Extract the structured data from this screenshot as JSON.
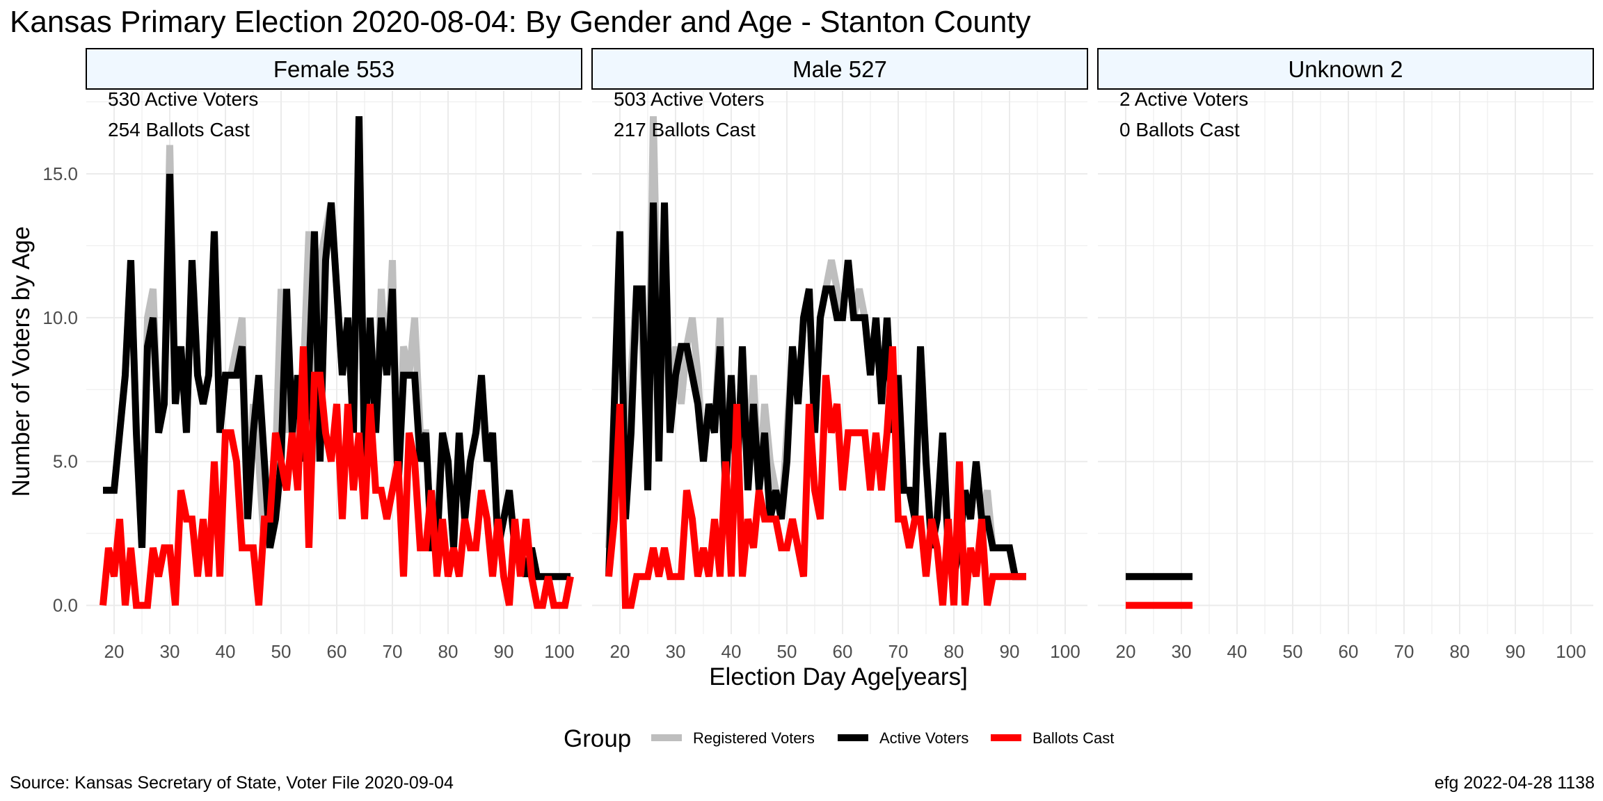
{
  "title": "Kansas Primary Election 2020-08-04:  By Gender and Age - Stanton County",
  "caption_left": "Source:  Kansas Secretary of State, Voter File  2020-09-04",
  "caption_right": "efg 2022-04-28 1138",
  "colors": {
    "registered": "#bebebe",
    "active": "#000000",
    "ballots": "#ff0000",
    "strip_fill": "#f0f8ff",
    "grid": "#ebebeb"
  },
  "chart_data": {
    "type": "line",
    "xlabel": "Election Day Age[years]",
    "ylabel": "Number of Voters by Age",
    "xlim": [
      15,
      104
    ],
    "ylim": [
      -1,
      17.9
    ],
    "x_ticks": [
      20,
      30,
      40,
      50,
      60,
      70,
      80,
      90,
      100
    ],
    "y_ticks": [
      0,
      5,
      10,
      15
    ],
    "y_tick_labels": [
      "0.0",
      "5.0",
      "10.0",
      "15.0"
    ],
    "legend": {
      "title": "Group",
      "position": "bottom",
      "items": [
        "Registered Voters",
        "Active Voters",
        "Ballots Cast"
      ]
    },
    "panels": [
      {
        "label": "Female 553",
        "annotations": [
          "530 Active Voters",
          "254 Ballots Cast"
        ],
        "series": [
          {
            "name": "Registered Voters",
            "x": [
              18,
              19,
              20,
              21,
              22,
              23,
              24,
              25,
              26,
              27,
              28,
              29,
              30,
              31,
              32,
              33,
              34,
              35,
              36,
              37,
              38,
              39,
              40,
              41,
              42,
              43,
              44,
              45,
              46,
              47,
              48,
              49,
              50,
              51,
              52,
              53,
              54,
              55,
              56,
              57,
              58,
              59,
              60,
              61,
              62,
              63,
              64,
              65,
              66,
              67,
              68,
              69,
              70,
              71,
              72,
              73,
              74,
              75,
              76,
              77,
              78,
              79,
              80,
              81,
              82,
              83,
              84,
              85,
              86,
              87,
              88,
              89,
              90,
              91,
              92,
              93,
              94,
              95,
              96,
              97,
              98,
              99,
              100,
              101,
              102
            ],
            "y": [
              4,
              4,
              4,
              6,
              8,
              12,
              6,
              2,
              10,
              11,
              6,
              7,
              16,
              7,
              9,
              6,
              12,
              8,
              7,
              8,
              13,
              6,
              8,
              8,
              9,
              10,
              3,
              7,
              5,
              2,
              3,
              5,
              11,
              6,
              8,
              5,
              8,
              13,
              5,
              12,
              13,
              14,
              11,
              8,
              10,
              6,
              17,
              5,
              10,
              6,
              11,
              8,
              12,
              4,
              9,
              8,
              10,
              6,
              6,
              2,
              3,
              6,
              5,
              2,
              6,
              3,
              5,
              6,
              7,
              5,
              6,
              2,
              3,
              4,
              2,
              2,
              1,
              2,
              1,
              1,
              1,
              1,
              1,
              1,
              1
            ]
          },
          {
            "name": "Active Voters",
            "x": [
              18,
              19,
              20,
              21,
              22,
              23,
              24,
              25,
              26,
              27,
              28,
              29,
              30,
              31,
              32,
              33,
              34,
              35,
              36,
              37,
              38,
              39,
              40,
              41,
              42,
              43,
              44,
              45,
              46,
              47,
              48,
              49,
              50,
              51,
              52,
              53,
              54,
              55,
              56,
              57,
              58,
              59,
              60,
              61,
              62,
              63,
              64,
              65,
              66,
              67,
              68,
              69,
              70,
              71,
              72,
              73,
              74,
              75,
              76,
              77,
              78,
              79,
              80,
              81,
              82,
              83,
              84,
              85,
              86,
              87,
              88,
              89,
              90,
              91,
              92,
              93,
              94,
              95,
              96,
              97,
              98,
              99,
              100,
              101,
              102
            ],
            "y": [
              4,
              4,
              4,
              6,
              8,
              12,
              6,
              2,
              9,
              10,
              6,
              7,
              15,
              7,
              9,
              6,
              12,
              8,
              7,
              8,
              13,
              6,
              8,
              8,
              8,
              9,
              3,
              6,
              8,
              5,
              2,
              3,
              5,
              11,
              6,
              8,
              5,
              8,
              13,
              5,
              12,
              14,
              11,
              8,
              10,
              6,
              17,
              5,
              10,
              6,
              10,
              8,
              11,
              4,
              8,
              8,
              8,
              5,
              6,
              2,
              2,
              6,
              5,
              2,
              6,
              3,
              5,
              6,
              8,
              5,
              6,
              2,
              3,
              4,
              2,
              2,
              1,
              2,
              1,
              1,
              1,
              1,
              1,
              1,
              1
            ]
          },
          {
            "name": "Ballots Cast",
            "x": [
              18,
              19,
              20,
              21,
              22,
              23,
              24,
              25,
              26,
              27,
              28,
              29,
              30,
              31,
              32,
              33,
              34,
              35,
              36,
              37,
              38,
              39,
              40,
              41,
              42,
              43,
              44,
              45,
              46,
              47,
              48,
              49,
              50,
              51,
              52,
              53,
              54,
              55,
              56,
              57,
              58,
              59,
              60,
              61,
              62,
              63,
              64,
              65,
              66,
              67,
              68,
              69,
              70,
              71,
              72,
              73,
              74,
              75,
              76,
              77,
              78,
              79,
              80,
              81,
              82,
              83,
              84,
              85,
              86,
              87,
              88,
              89,
              90,
              91,
              92,
              93,
              94,
              95,
              96,
              97,
              98,
              99,
              100,
              101,
              102
            ],
            "y": [
              0,
              2,
              1,
              3,
              0,
              2,
              0,
              0,
              0,
              2,
              1,
              2,
              2,
              0,
              4,
              3,
              3,
              1,
              3,
              1,
              5,
              1,
              6,
              6,
              5,
              2,
              2,
              2,
              0,
              3,
              3,
              6,
              5,
              4,
              6,
              4,
              9,
              2,
              8,
              8,
              6,
              5,
              7,
              3,
              7,
              4,
              6,
              3,
              7,
              4,
              4,
              3,
              4,
              5,
              1,
              6,
              5,
              2,
              2,
              4,
              1,
              3,
              1,
              2,
              1,
              3,
              2,
              2,
              4,
              3,
              1,
              3,
              1,
              0,
              3,
              1,
              3,
              1,
              0,
              0,
              1,
              0,
              0,
              0,
              1
            ]
          }
        ]
      },
      {
        "label": "Male 527",
        "annotations": [
          "503 Active Voters",
          "217 Ballots Cast"
        ],
        "series": [
          {
            "name": "Registered Voters",
            "x": [
              18,
              19,
              20,
              21,
              22,
              23,
              24,
              25,
              26,
              27,
              28,
              29,
              30,
              31,
              32,
              33,
              34,
              35,
              36,
              37,
              38,
              39,
              40,
              41,
              42,
              43,
              44,
              45,
              46,
              47,
              48,
              49,
              50,
              51,
              52,
              53,
              54,
              55,
              56,
              57,
              58,
              59,
              60,
              61,
              62,
              63,
              64,
              65,
              66,
              67,
              68,
              69,
              70,
              71,
              72,
              73,
              74,
              75,
              76,
              77,
              78,
              79,
              80,
              81,
              82,
              83,
              84,
              85,
              86,
              87,
              88,
              89,
              90,
              91,
              92,
              93
            ],
            "y": [
              2,
              7,
              12,
              4,
              8,
              11,
              9,
              5,
              17,
              8,
              12,
              6,
              9,
              7,
              9,
              10,
              8,
              5,
              7,
              6,
              10,
              4,
              8,
              4,
              9,
              5,
              8,
              4,
              7,
              5,
              4,
              3,
              6,
              9,
              7,
              10,
              11,
              6,
              10,
              11,
              12,
              11,
              10,
              12,
              10,
              11,
              10,
              8,
              10,
              7,
              10,
              6,
              8,
              4,
              4,
              3,
              9,
              5,
              2,
              3,
              5,
              2,
              1,
              2,
              4,
              3,
              5,
              3,
              4,
              2,
              2,
              2,
              2,
              1,
              1,
              1
            ]
          },
          {
            "name": "Active Voters",
            "x": [
              18,
              19,
              20,
              21,
              22,
              23,
              24,
              25,
              26,
              27,
              28,
              29,
              30,
              31,
              32,
              33,
              34,
              35,
              36,
              37,
              38,
              39,
              40,
              41,
              42,
              43,
              44,
              45,
              46,
              47,
              48,
              49,
              50,
              51,
              52,
              53,
              54,
              55,
              56,
              57,
              58,
              59,
              60,
              61,
              62,
              63,
              64,
              65,
              66,
              67,
              68,
              69,
              70,
              71,
              72,
              73,
              74,
              75,
              76,
              77,
              78,
              79,
              80,
              81,
              82,
              83,
              84,
              85,
              86,
              87,
              88,
              89,
              90,
              91,
              92,
              93
            ],
            "y": [
              1,
              7,
              13,
              3,
              6,
              11,
              11,
              4,
              14,
              5,
              14,
              6,
              8,
              9,
              9,
              8,
              7,
              5,
              7,
              6,
              9,
              4,
              8,
              4,
              9,
              4,
              7,
              4,
              6,
              3,
              4,
              3,
              5,
              9,
              7,
              10,
              11,
              6,
              10,
              11,
              11,
              10,
              10,
              12,
              10,
              10,
              10,
              8,
              10,
              7,
              10,
              6,
              8,
              4,
              4,
              3,
              9,
              5,
              2,
              3,
              6,
              2,
              1,
              2,
              4,
              3,
              5,
              3,
              3,
              2,
              2,
              2,
              2,
              1,
              1,
              1
            ]
          },
          {
            "name": "Ballots Cast",
            "x": [
              18,
              19,
              20,
              21,
              22,
              23,
              24,
              25,
              26,
              27,
              28,
              29,
              30,
              31,
              32,
              33,
              34,
              35,
              36,
              37,
              38,
              39,
              40,
              41,
              42,
              43,
              44,
              45,
              46,
              47,
              48,
              49,
              50,
              51,
              52,
              53,
              54,
              55,
              56,
              57,
              58,
              59,
              60,
              61,
              62,
              63,
              64,
              65,
              66,
              67,
              68,
              69,
              70,
              71,
              72,
              73,
              74,
              75,
              76,
              77,
              78,
              79,
              80,
              81,
              82,
              83,
              84,
              85,
              86,
              87,
              88,
              89,
              90,
              91,
              92,
              93
            ],
            "y": [
              1,
              3,
              7,
              0,
              0,
              1,
              1,
              1,
              2,
              1,
              2,
              1,
              1,
              1,
              4,
              3,
              1,
              2,
              1,
              3,
              1,
              5,
              1,
              7,
              1,
              3,
              2,
              4,
              3,
              3,
              3,
              2,
              2,
              3,
              2,
              1,
              7,
              4,
              3,
              8,
              6,
              7,
              4,
              6,
              6,
              6,
              6,
              4,
              6,
              4,
              6,
              9,
              3,
              3,
              2,
              3,
              3,
              1,
              3,
              2,
              0,
              3,
              0,
              5,
              0,
              2,
              1,
              3,
              0,
              1,
              1,
              1,
              1,
              1,
              1,
              1
            ]
          }
        ]
      },
      {
        "label": "Unknown 2",
        "annotations": [
          "2 Active Voters",
          "0 Ballots Cast"
        ],
        "series": [
          {
            "name": "Registered Voters",
            "x": [
              20,
              32
            ],
            "y": [
              1,
              1
            ]
          },
          {
            "name": "Active Voters",
            "x": [
              20,
              32
            ],
            "y": [
              1,
              1
            ]
          },
          {
            "name": "Ballots Cast",
            "x": [
              20,
              32
            ],
            "y": [
              0,
              0
            ]
          }
        ]
      }
    ]
  }
}
